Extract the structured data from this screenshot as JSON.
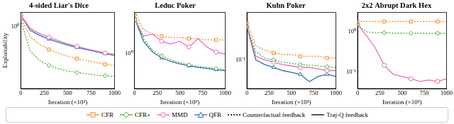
{
  "chart_data": [
    {
      "type": "line",
      "title": "4-sided Liar's Dice",
      "x_label": "Iteration (×10³)",
      "y_label": "Exploitability",
      "log": "y",
      "grid": false,
      "x": [
        0,
        100,
        200,
        300,
        400,
        500,
        600,
        700,
        800,
        900,
        1000
      ],
      "xlim": [
        0,
        1000
      ],
      "xticks": [
        0,
        250,
        500,
        750,
        1000
      ],
      "ylim": [
        0.17,
        1.5
      ],
      "yticks": [
        {
          "value": 1,
          "label": "10⁰"
        }
      ],
      "series": [
        {
          "name": "CFR",
          "color": "#f5891f",
          "marker": "square",
          "line_style": "dotted",
          "values": [
            1.3,
            0.75,
            0.6,
            0.52,
            0.47,
            0.43,
            0.4,
            0.38,
            0.36,
            0.34,
            0.33
          ]
        },
        {
          "name": "CFR+",
          "color": "#4dac3e",
          "marker": "diamond",
          "line_style": "dotted",
          "values": [
            1.2,
            0.5,
            0.38,
            0.33,
            0.3,
            0.28,
            0.27,
            0.26,
            0.25,
            0.245,
            0.24
          ]
        },
        {
          "name": "MMD",
          "color": "#e86fb8",
          "marker": "circle",
          "line_style": "solid",
          "values": [
            1.4,
            0.95,
            0.82,
            0.74,
            0.67,
            0.61,
            0.57,
            0.53,
            0.5,
            0.47,
            0.45
          ]
        },
        {
          "name": "QFR",
          "color": "#2f6db5",
          "marker": "triangle",
          "line_style": "solid",
          "values": [
            1.4,
            0.9,
            0.78,
            0.7,
            0.64,
            0.59,
            0.55,
            0.52,
            0.49,
            0.46,
            0.44
          ]
        }
      ]
    },
    {
      "type": "line",
      "title": "Leduc Poker",
      "x_label": "Iteration (×10³)",
      "log": "y",
      "grid": false,
      "x": [
        0,
        100,
        200,
        300,
        400,
        500,
        600,
        700,
        800,
        900,
        1000
      ],
      "xlim": [
        0,
        1000
      ],
      "xticks": [
        0,
        250,
        500,
        750,
        1000
      ],
      "ylim": [
        0.4,
        3
      ],
      "yticks": [
        {
          "value": 1,
          "label": "10⁰"
        }
      ],
      "series": [
        {
          "name": "CFR",
          "color": "#f5891f",
          "marker": "square",
          "line_style": "dotted",
          "values": [
            3,
            1.9,
            1.7,
            1.6,
            1.55,
            1.55,
            1.5,
            1.5,
            1.45,
            1.45,
            1.45
          ]
        },
        {
          "name": "CFR+",
          "color": "#4dac3e",
          "marker": "diamond",
          "line_style": "dotted",
          "values": [
            2.8,
            1.5,
            1.1,
            0.95,
            0.85,
            0.8,
            0.75,
            0.72,
            0.7,
            0.68,
            0.66
          ]
        },
        {
          "name": "MMD",
          "color": "#e86fb8",
          "marker": "circle",
          "line_style": "solid",
          "values": [
            2.5,
            1.6,
            1.7,
            1.4,
            1.3,
            1.4,
            1.2,
            1.5,
            1.2,
            1.05,
            1.0
          ]
        },
        {
          "name": "QFR",
          "color": "#2f6db5",
          "marker": "triangle",
          "line_style": "solid",
          "values": [
            2.6,
            1.4,
            1.05,
            0.9,
            0.82,
            0.77,
            0.73,
            0.7,
            0.68,
            0.66,
            0.64
          ]
        }
      ]
    },
    {
      "type": "line",
      "title": "Kuhn Poker",
      "x_label": "Iteration (×10³)",
      "log": "y",
      "grid": false,
      "x": [
        0,
        100,
        200,
        300,
        400,
        500,
        600,
        700,
        800,
        900,
        1000
      ],
      "xlim": [
        0,
        1000
      ],
      "xticks": [
        0,
        250,
        500,
        750,
        1000
      ],
      "ylim": [
        0.025,
        1
      ],
      "yticks": [
        {
          "value": 0.1,
          "label": "10⁻¹"
        }
      ],
      "series": [
        {
          "name": "CFR",
          "color": "#f5891f",
          "marker": "square",
          "line_style": "dotted",
          "values": [
            0.6,
            0.2,
            0.16,
            0.14,
            0.13,
            0.13,
            0.12,
            0.12,
            0.12,
            0.11,
            0.11
          ]
        },
        {
          "name": "CFR+",
          "color": "#4dac3e",
          "marker": "diamond",
          "line_style": "dotted",
          "values": [
            0.5,
            0.15,
            0.11,
            0.1,
            0.09,
            0.085,
            0.08,
            0.078,
            0.075,
            0.072,
            0.07
          ]
        },
        {
          "name": "MMD",
          "color": "#e86fb8",
          "marker": "circle",
          "line_style": "solid",
          "values": [
            0.5,
            0.12,
            0.1,
            0.09,
            0.08,
            0.075,
            0.07,
            0.07,
            0.065,
            0.06,
            0.06
          ]
        },
        {
          "name": "QFR",
          "color": "#2f6db5",
          "marker": "triangle",
          "line_style": "solid",
          "values": [
            0.5,
            0.1,
            0.08,
            0.07,
            0.06,
            0.055,
            0.05,
            0.035,
            0.045,
            0.05,
            0.045
          ]
        }
      ]
    },
    {
      "type": "line",
      "title": "2x2 Abrupt Dark Hex",
      "x_label": "Iteration (×10³)",
      "log": "y",
      "grid": false,
      "x": [
        0,
        100,
        200,
        300,
        400,
        500,
        600,
        700,
        800,
        900,
        1000
      ],
      "xlim": [
        0,
        1000
      ],
      "xticks": [
        0,
        250,
        500,
        750,
        1000
      ],
      "ylim": [
        0.04,
        3
      ],
      "yticks": [
        {
          "value": 0.1,
          "label": "10⁻¹"
        },
        {
          "value": 1,
          "label": "10⁰"
        }
      ],
      "series": [
        {
          "name": "CFR",
          "color": "#f5891f",
          "marker": "square",
          "line_style": "dotted",
          "values": [
            1.8,
            1.8,
            1.8,
            1.8,
            1.8,
            1.8,
            1.8,
            1.8,
            1.8,
            1.8,
            1.8
          ]
        },
        {
          "name": "CFR+",
          "color": "#4dac3e",
          "marker": "diamond",
          "line_style": "dotted",
          "values": [
            1.5,
            1.0,
            0.95,
            0.95,
            0.93,
            0.93,
            0.92,
            0.92,
            0.92,
            0.92,
            0.92
          ]
        },
        {
          "name": "MMD",
          "color": "#e86fb8",
          "marker": "circle",
          "line_style": "solid",
          "values": [
            1.5,
            0.8,
            0.4,
            0.15,
            0.09,
            0.08,
            0.07,
            0.06,
            0.065,
            0.06,
            0.07
          ]
        }
      ]
    }
  ],
  "line_style_legend": [
    {
      "name": "Counterfactual feedback",
      "line_style": "dotted"
    },
    {
      "name": "Traj-Q feedback",
      "line_style": "solid"
    }
  ]
}
